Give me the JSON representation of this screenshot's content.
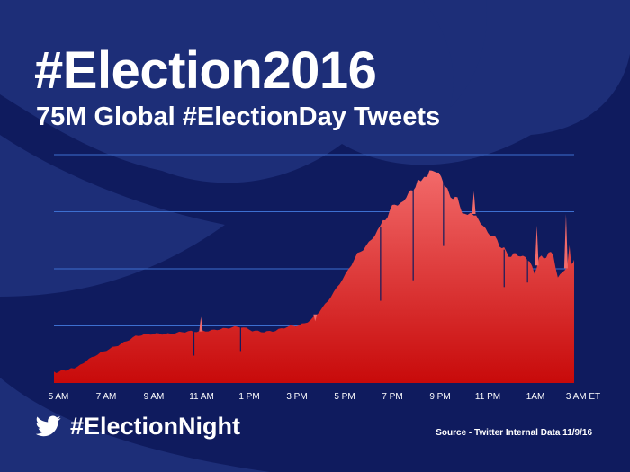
{
  "header": {
    "title": "#Election2016",
    "subtitle": "75M Global #ElectionDay Tweets"
  },
  "footer": {
    "hashtag": "#ElectionNight",
    "source": "Source - Twitter Internal Data 11/9/16"
  },
  "icons": {
    "brand": "twitter-bird-icon"
  },
  "colors": {
    "background": "#0f1b5e",
    "background_bird": "#1d2e78",
    "area_top": "#f26a6a",
    "area_bottom": "#c80a0a",
    "gridline": "#3d6fd0",
    "text": "#ffffff"
  },
  "chart_data": {
    "type": "area",
    "title": "75M Global #ElectionDay Tweets",
    "xlabel": "",
    "ylabel": "",
    "grid": true,
    "gridlines": 4,
    "ylim": [
      0,
      100
    ],
    "x_ticks": [
      "5 AM",
      "7 AM",
      "9 AM",
      "11 AM",
      "1 PM",
      "3 PM",
      "5 PM",
      "7 PM",
      "9 PM",
      "11 PM",
      "1AM",
      "3 AM ET"
    ],
    "x_range": [
      0,
      22.3
    ],
    "x": [
      0,
      0.3,
      0.6,
      1,
      1.5,
      2,
      2.5,
      3,
      3.5,
      4,
      4.5,
      5,
      5.5,
      6,
      6.5,
      7,
      7.5,
      8,
      8.5,
      9,
      9.5,
      10,
      10.5,
      11,
      11.5,
      12,
      12.5,
      13,
      13.5,
      14,
      14.3,
      14.6,
      15,
      15.3,
      15.6,
      16,
      16.3,
      16.6,
      17,
      17.3,
      17.6,
      18,
      18.2,
      18.4,
      18.6,
      18.8,
      19,
      19.2,
      19.4,
      19.6,
      19.8,
      20,
      20.2,
      20.4,
      20.6,
      20.8,
      21,
      21.2,
      21.4,
      21.6,
      21.8,
      22,
      22.1,
      22.2,
      22.3
    ],
    "y": [
      5,
      5,
      6,
      7,
      10,
      13,
      16,
      18,
      20,
      21,
      22,
      22,
      22,
      22,
      23,
      24,
      24,
      24,
      23,
      23,
      23,
      24,
      25,
      28,
      33,
      39,
      47,
      57,
      62,
      68,
      74,
      78,
      80,
      84,
      88,
      90,
      94,
      90,
      82,
      80,
      74,
      74,
      71,
      69,
      66,
      64,
      63,
      59,
      57,
      56,
      56,
      56,
      55,
      53,
      48,
      55,
      54,
      58,
      55,
      47,
      48,
      51,
      60,
      52,
      54
    ],
    "spikes": [
      {
        "x": 6.3,
        "y": 29
      },
      {
        "x": 11.2,
        "y": 27
      },
      {
        "x": 18.0,
        "y": 84
      },
      {
        "x": 20.7,
        "y": 69
      },
      {
        "x": 21.95,
        "y": 74
      }
    ],
    "dips": [
      {
        "x": 6.0,
        "y": 12
      },
      {
        "x": 8.0,
        "y": 14
      },
      {
        "x": 14.0,
        "y": 36
      },
      {
        "x": 15.4,
        "y": 45
      },
      {
        "x": 16.7,
        "y": 60
      },
      {
        "x": 19.3,
        "y": 42
      },
      {
        "x": 20.3,
        "y": 44
      }
    ]
  }
}
